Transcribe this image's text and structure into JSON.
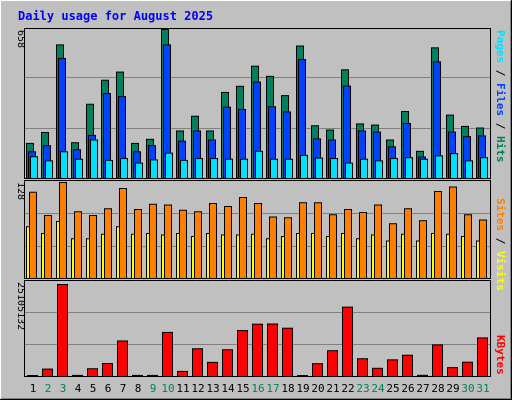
{
  "title": "Daily usage for August 2025",
  "colors": {
    "hits": "#00805C",
    "files": "#0040FF",
    "pages": "#00E0FF",
    "visits": "#FFFF00",
    "sites": "#FF8000",
    "kbytes": "#FF0000",
    "title": "#0000FF",
    "panel": "#C0C0C0",
    "weekend_label": "#00805C"
  },
  "chart_data": [
    {
      "type": "bar",
      "name_panel": "top",
      "max_label": "658",
      "ylim": [
        0,
        658
      ],
      "categories": [
        "1",
        "2",
        "3",
        "4",
        "5",
        "6",
        "7",
        "8",
        "9",
        "10",
        "11",
        "12",
        "13",
        "14",
        "15",
        "16",
        "17",
        "18",
        "19",
        "20",
        "21",
        "22",
        "23",
        "24",
        "25",
        "26",
        "27",
        "28",
        "29",
        "30",
        "31"
      ],
      "weekend_days": [
        2,
        3,
        9,
        10,
        16,
        17,
        23,
        24,
        30,
        31
      ],
      "axis_labels": [
        {
          "text": "Pages",
          "color": "#00E0FF"
        },
        {
          "text": " / ",
          "color": "#000000"
        },
        {
          "text": "Files",
          "color": "#0040FF"
        },
        {
          "text": " / ",
          "color": "#000000"
        },
        {
          "text": "Hits",
          "color": "#00805C"
        }
      ],
      "series": [
        {
          "name": "Hits",
          "values": [
            155,
            203,
            590,
            158,
            328,
            434,
            470,
            155,
            173,
            658,
            210,
            275,
            210,
            380,
            407,
            496,
            451,
            366,
            585,
            233,
            214,
            480,
            241,
            236,
            170,
            296,
            120,
            577,
            280,
            230,
            223
          ]
        },
        {
          "name": "Files",
          "values": [
            118,
            145,
            530,
            127,
            190,
            375,
            362,
            118,
            145,
            590,
            165,
            210,
            170,
            315,
            305,
            426,
            317,
            294,
            525,
            175,
            170,
            408,
            210,
            205,
            140,
            243,
            95,
            515,
            205,
            185,
            188
          ]
        },
        {
          "name": "Pages",
          "values": [
            96,
            78,
            118,
            85,
            170,
            80,
            88,
            68,
            82,
            112,
            80,
            88,
            88,
            85,
            85,
            120,
            85,
            85,
            102,
            90,
            88,
            68,
            85,
            78,
            88,
            92,
            85,
            100,
            110,
            78,
            92
          ]
        }
      ]
    },
    {
      "type": "bar",
      "name_panel": "middle",
      "max_label": "128",
      "ylim": [
        0,
        128
      ],
      "axis_labels": [
        {
          "text": "Sites",
          "color": "#FF8000"
        },
        {
          "text": " / ",
          "color": "#000000"
        },
        {
          "text": "Visits",
          "color": "#FFFF00"
        }
      ],
      "series": [
        {
          "name": "Sites",
          "values": [
            115,
            84,
            128,
            89,
            84,
            93,
            120,
            92,
            99,
            98,
            91,
            89,
            100,
            96,
            108,
            100,
            82,
            81,
            101,
            101,
            85,
            92,
            88,
            98,
            73,
            93,
            77,
            116,
            122,
            85,
            78
          ]
        },
        {
          "name": "Visits",
          "values": [
            69,
            60,
            76,
            53,
            53,
            59,
            69,
            59,
            60,
            58,
            60,
            56,
            60,
            58,
            58,
            59,
            53,
            56,
            60,
            60,
            56,
            60,
            53,
            58,
            50,
            59,
            50,
            60,
            59,
            56,
            50
          ]
        }
      ]
    },
    {
      "type": "bar",
      "name_panel": "bottom",
      "max_label": "25105132",
      "ylim": [
        0,
        25105132
      ],
      "axis_labels": [
        {
          "text": "KBytes",
          "color": "#FF0000"
        }
      ],
      "series": [
        {
          "name": "KBytes",
          "values": [
            0,
            2025000,
            25105132,
            300000,
            2120000,
            3550000,
            9695000,
            300000,
            300000,
            12030000,
            1390000,
            7575000,
            3850000,
            7300000,
            12540000,
            14280000,
            14330000,
            13180000,
            0,
            3500000,
            7050000,
            18930000,
            4850000,
            2240000,
            4550000,
            5810000,
            320000,
            8620000,
            2420000,
            3900000,
            10530000
          ]
        }
      ]
    }
  ]
}
